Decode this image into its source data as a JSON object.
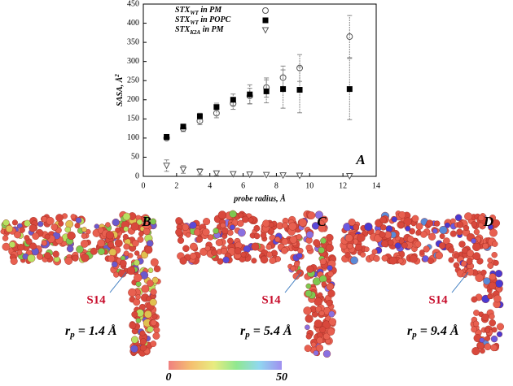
{
  "chart_data": {
    "type": "scatter",
    "xlabel": "probe radius, Å",
    "ylabel": [
      "SASA, Å",
      "2"
    ],
    "annotation": "A",
    "xlim": [
      0,
      14
    ],
    "xticks": [
      0,
      2,
      4,
      6,
      8,
      10,
      12,
      14
    ],
    "ylim": [
      0,
      450
    ],
    "yticks": [
      0,
      50,
      100,
      150,
      200,
      250,
      300,
      350,
      400,
      450
    ],
    "x": [
      1.4,
      2.4,
      3.4,
      4.4,
      5.4,
      6.4,
      7.4,
      8.4,
      9.4,
      12.4
    ],
    "series": [
      {
        "name": [
          "STX",
          "WT",
          " in PM"
        ],
        "marker": "circle",
        "color": "#555555",
        "values": [
          100,
          125,
          145,
          165,
          190,
          210,
          232,
          258,
          283,
          365
        ],
        "errors": [
          5,
          8,
          10,
          12,
          15,
          20,
          25,
          30,
          35,
          55
        ]
      },
      {
        "name": [
          "STX",
          "WT",
          " in POPC"
        ],
        "marker": "square",
        "color": "#000000",
        "values": [
          103,
          130,
          157,
          181,
          200,
          214,
          222,
          228,
          226,
          228
        ],
        "errors": [
          5,
          6,
          8,
          10,
          15,
          25,
          30,
          50,
          60,
          80
        ]
      },
      {
        "name": [
          "STX",
          "K2A",
          " in PM"
        ],
        "marker": "triangle",
        "color": "#555555",
        "values": [
          28,
          18,
          12,
          8,
          6,
          5,
          4,
          3,
          2,
          1
        ],
        "errors": [
          15,
          10,
          8,
          6,
          5,
          4,
          4,
          3,
          3,
          2
        ]
      }
    ]
  },
  "panels": [
    {
      "letter": "B",
      "residue": "S14",
      "radius": [
        "r",
        "p",
        " = 1.4 Å"
      ]
    },
    {
      "letter": "C",
      "residue": "S14",
      "radius": [
        "r",
        "p",
        " = 5.4 Å"
      ]
    },
    {
      "letter": "D",
      "residue": "S14",
      "radius": [
        "r",
        "p",
        " = 9.4 Å"
      ]
    }
  ],
  "colorbar": {
    "min_label": "0",
    "max_label": "50"
  }
}
